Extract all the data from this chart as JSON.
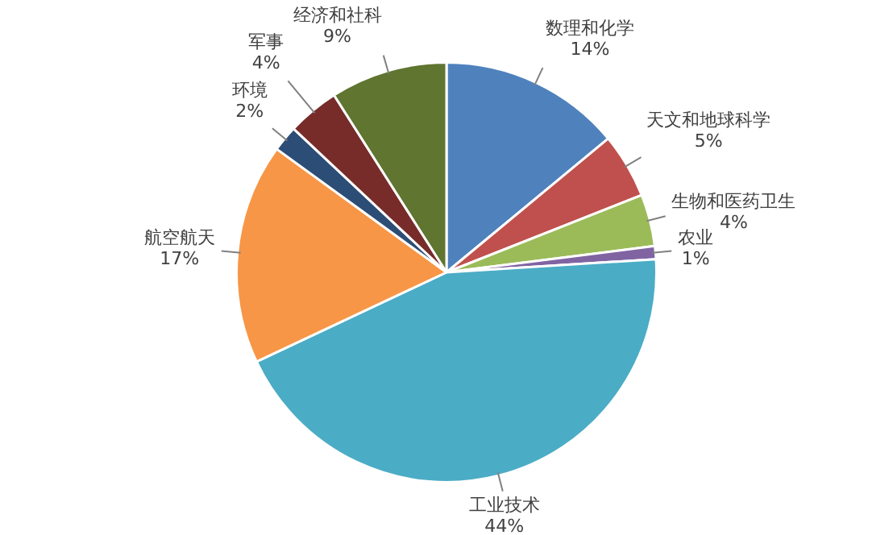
{
  "chart_data": {
    "type": "pie",
    "categories": [
      "数理和化学",
      "天文和地球科学",
      "生物和医药卫生",
      "农业",
      "工业技术",
      "航空航天",
      "环境",
      "军事",
      "经济和社科"
    ],
    "values": [
      14,
      5,
      4,
      1,
      44,
      17,
      2,
      4,
      9
    ],
    "value_labels": [
      "14%",
      "5%",
      "4%",
      "1%",
      "44%",
      "17%",
      "2%",
      "4%",
      "9%"
    ],
    "colors": [
      "#4f81bd",
      "#c0504d",
      "#9bbb59",
      "#8064a2",
      "#4bacc6",
      "#f79646",
      "#2c4d75",
      "#772c2a",
      "#5f7530"
    ],
    "legend": false
  }
}
